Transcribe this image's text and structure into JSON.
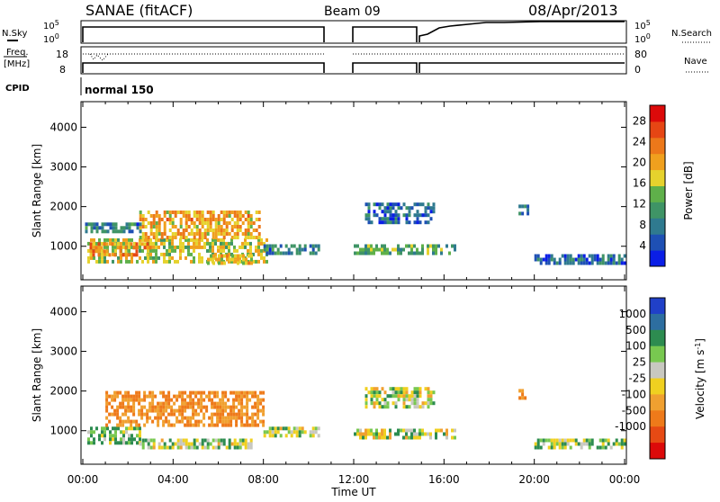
{
  "header": {
    "title": "SANAE (fitACF)",
    "beam": "Beam 09",
    "date": "08/Apr/2013"
  },
  "status_panels": {
    "nsky": {
      "label": "N.Sky",
      "ticks": [
        "10^5",
        "10^0"
      ]
    },
    "nsearch": {
      "label": "N.Search",
      "ticks": [
        "10^5",
        "10^0"
      ]
    },
    "freq": {
      "label_line1": "Freq.",
      "label_line2": "[MHz]",
      "ticks": [
        "18",
        "8"
      ]
    },
    "nave": {
      "label": "Nave",
      "ticks": [
        "80",
        "0"
      ]
    },
    "cpid": {
      "label": "CPID",
      "value": "normal 150"
    },
    "data_gaps_hours": [
      [
        10.7,
        11.9
      ],
      [
        14.9,
        14.95
      ]
    ]
  },
  "chart_data": [
    {
      "type": "heatmap",
      "title": "",
      "ylabel": "Slant Range [km]",
      "xlabel": "",
      "x_range_hours": [
        0,
        24
      ],
      "ylim": [
        200,
        4600
      ],
      "yticks": [
        1000,
        2000,
        3000,
        4000
      ],
      "colorbar": {
        "label": "Power [dB]",
        "ticks": [
          4,
          8,
          12,
          16,
          20,
          24,
          28
        ],
        "range": [
          0,
          31
        ],
        "colors": [
          "#0a1ee6",
          "#1e50b4",
          "#2f7a8f",
          "#3f9466",
          "#5fb04a",
          "#e6d22d",
          "#f0a01e",
          "#ec781a",
          "#e64614",
          "#dc0a0a"
        ]
      },
      "regions": [
        {
          "x": [
            0.2,
            8.2
          ],
          "y": [
            600,
            1200
          ],
          "value": 16
        },
        {
          "x": [
            2.5,
            7.8
          ],
          "y": [
            1200,
            1900
          ],
          "value": 20
        },
        {
          "x": [
            0.3,
            3.0
          ],
          "y": [
            800,
            1100
          ],
          "value": 22
        },
        {
          "x": [
            5.5,
            7.5
          ],
          "y": [
            550,
            800
          ],
          "value": 18
        },
        {
          "x": [
            0.1,
            2.5
          ],
          "y": [
            1400,
            1600
          ],
          "value": 8
        },
        {
          "x": [
            8.0,
            10.6
          ],
          "y": [
            850,
            1050
          ],
          "value": 8
        },
        {
          "x": [
            12.0,
            16.5
          ],
          "y": [
            850,
            1050
          ],
          "value": 12
        },
        {
          "x": [
            12.5,
            15.5
          ],
          "y": [
            1600,
            2100
          ],
          "value": 6
        },
        {
          "x": [
            20.0,
            24.0
          ],
          "y": [
            550,
            800
          ],
          "value": 6
        },
        {
          "x": [
            19.3,
            19.7
          ],
          "y": [
            1850,
            2050
          ],
          "value": 6
        }
      ]
    },
    {
      "type": "heatmap",
      "title": "",
      "ylabel": "Slant Range [km]",
      "xlabel": "Time UT",
      "x_range_hours": [
        0,
        24
      ],
      "xticks": [
        "00:00",
        "04:00",
        "08:00",
        "12:00",
        "16:00",
        "20:00",
        "00:00"
      ],
      "ylim": [
        200,
        4600
      ],
      "yticks": [
        1000,
        2000,
        3000,
        4000
      ],
      "colorbar": {
        "label": "Velocity [m s^-1]",
        "ticks": [
          "1000",
          "500",
          "100",
          "25",
          "-25",
          "-100",
          "-500",
          "-1000"
        ],
        "colors": [
          "#2040c8",
          "#2d6ea0",
          "#2d8c50",
          "#78c850",
          "#c8c8c0",
          "#f0d020",
          "#f0a030",
          "#ee7a1a",
          "#e64a14",
          "#dc0a0a"
        ]
      },
      "regions": [
        {
          "x": [
            0.2,
            2.5
          ],
          "y": [
            700,
            1100
          ],
          "value": 100
        },
        {
          "x": [
            1.0,
            8.0
          ],
          "y": [
            1100,
            2000
          ],
          "value": -300
        },
        {
          "x": [
            2.5,
            7.5
          ],
          "y": [
            550,
            800
          ],
          "value": 25
        },
        {
          "x": [
            8.0,
            10.6
          ],
          "y": [
            850,
            1100
          ],
          "value": 0
        },
        {
          "x": [
            12.0,
            16.5
          ],
          "y": [
            850,
            1050
          ],
          "value": 0
        },
        {
          "x": [
            12.5,
            15.5
          ],
          "y": [
            1600,
            2100
          ],
          "value": 0
        },
        {
          "x": [
            19.3,
            19.6
          ],
          "y": [
            1850,
            2050
          ],
          "value": -300
        },
        {
          "x": [
            20.0,
            24.0
          ],
          "y": [
            550,
            800
          ],
          "value": 60
        }
      ]
    }
  ]
}
